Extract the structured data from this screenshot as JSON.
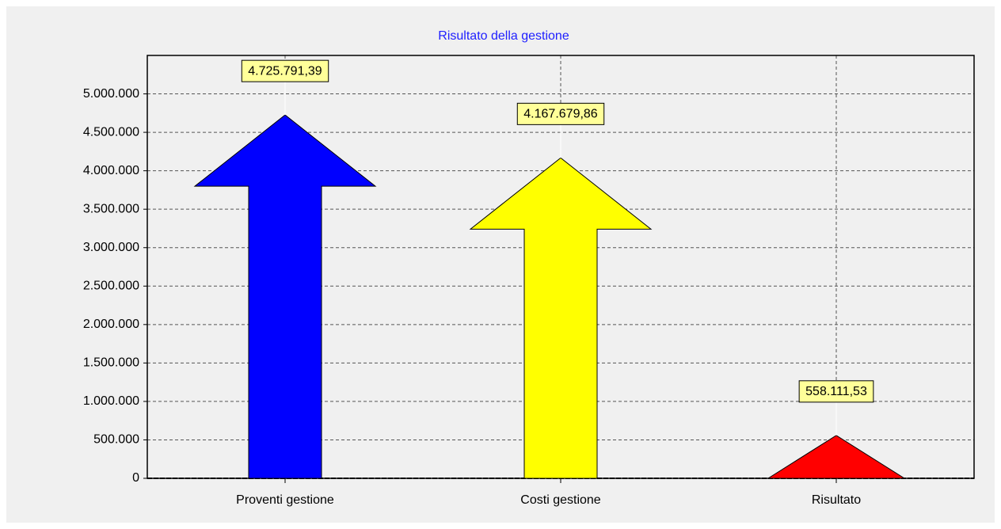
{
  "chart_data": {
    "type": "arrow_bar",
    "title": "Risultato della gestione",
    "categories": [
      "Proventi gestione",
      "Costi gestione",
      "Risultato"
    ],
    "values": [
      4725791.39,
      4167679.86,
      558111.53
    ],
    "value_labels": [
      "4.725.791,39",
      "4.167.679,86",
      "558.111,53"
    ],
    "colors": [
      "#0000ff",
      "#ffff00",
      "#ff0000"
    ],
    "ylim": [
      0,
      5500000
    ],
    "yticks": [
      0,
      {
        "value": 500000,
        "label": "500.000"
      },
      {
        "value": 1000000,
        "label": "1.000.000"
      },
      {
        "value": 1500000,
        "label": "1.500.000"
      },
      {
        "value": 2000000,
        "label": "2.000.000"
      },
      {
        "value": 2500000,
        "label": "2.500.000"
      },
      {
        "value": 3000000,
        "label": "3.000.000"
      },
      {
        "value": 3500000,
        "label": "3.500.000"
      },
      {
        "value": 4000000,
        "label": "4.000.000"
      },
      {
        "value": 4500000,
        "label": "4.500.000"
      },
      {
        "value": 5000000,
        "label": "5.000.000"
      }
    ],
    "grid": true
  }
}
